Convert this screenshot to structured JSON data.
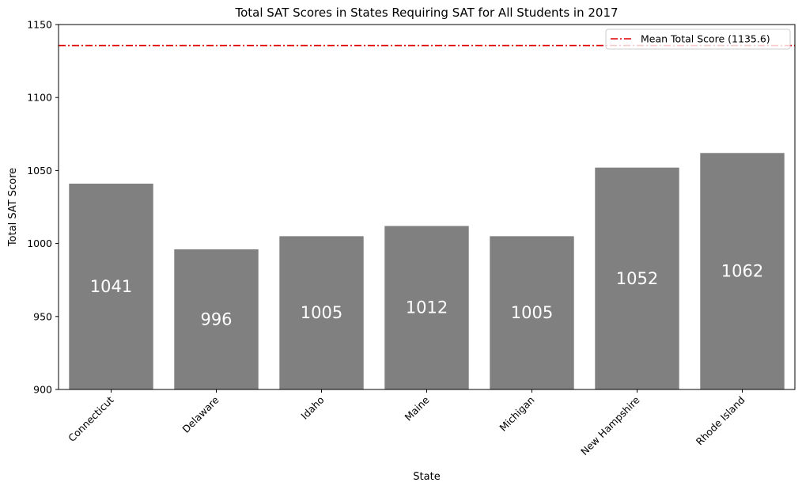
{
  "chart_data": {
    "type": "bar",
    "title": "Total SAT Scores in States Requiring SAT for All Students in 2017",
    "xlabel": "State",
    "ylabel": "Total SAT Score",
    "categories": [
      "Connecticut",
      "Delaware",
      "Idaho",
      "Maine",
      "Michigan",
      "New Hampshire",
      "Rhode Island"
    ],
    "values": [
      1041,
      996,
      1005,
      1012,
      1005,
      1052,
      1062
    ],
    "data_labels": [
      "1041",
      "996",
      "1005",
      "1012",
      "1005",
      "1052",
      "1062"
    ],
    "ylim": [
      900,
      1150
    ],
    "yticks": [
      900,
      950,
      1000,
      1050,
      1100,
      1150
    ],
    "bar_color": "#808080",
    "mean_line": {
      "value": 1135.6,
      "label": "Mean Total Score (1135.6)",
      "color": "#e00000",
      "style": "dash-dot"
    },
    "legend": {
      "placement": "top-right"
    },
    "grid": false
  }
}
